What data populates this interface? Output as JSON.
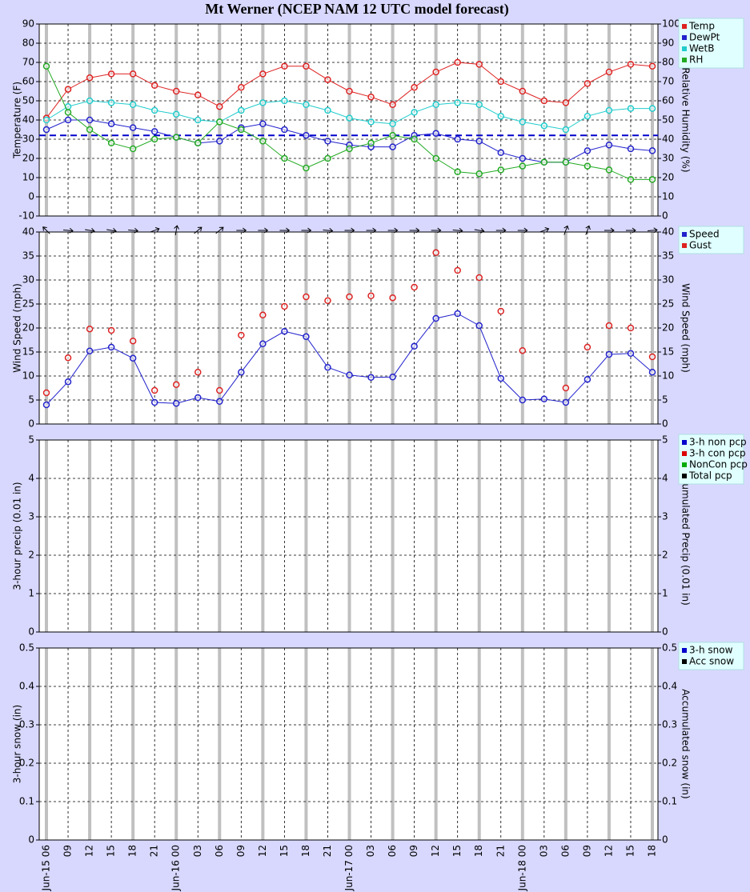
{
  "title": "Mt Werner (NCEP NAM 12 UTC model forecast)",
  "chart_data": [
    {
      "type": "line",
      "ylabel": "Temperature (F)",
      "y2label": "Relative Humidity (%)",
      "ylim": [
        -10,
        90
      ],
      "yticks": [
        -10,
        0,
        10,
        20,
        30,
        40,
        50,
        60,
        70,
        80,
        90
      ],
      "y2lim": [
        0,
        100
      ],
      "y2ticks": [
        0,
        10,
        20,
        30,
        40,
        50,
        60,
        70,
        80,
        90,
        100
      ],
      "grid": true,
      "reference_line": {
        "value": 32,
        "color": "#0000cc"
      },
      "series": [
        {
          "name": "Temp",
          "color": "#dd2222",
          "values": [
            41,
            56,
            62,
            64,
            64,
            58,
            55,
            53,
            47,
            57,
            64,
            68,
            68,
            61,
            55,
            52,
            48,
            57,
            65,
            70,
            69,
            60,
            55,
            50,
            49,
            59,
            65,
            69,
            68
          ]
        },
        {
          "name": "DewPt",
          "color": "#2222cc",
          "values": [
            35,
            40,
            40,
            38,
            36,
            34,
            31,
            28,
            29,
            36,
            38,
            35,
            32,
            29,
            27,
            26,
            26,
            32,
            33,
            30,
            29,
            23,
            20,
            18,
            18,
            24,
            27,
            25,
            24
          ]
        },
        {
          "name": "WetB",
          "color": "#22cccc",
          "values": [
            40,
            47,
            50,
            49,
            48,
            45,
            43,
            40,
            39,
            45,
            49,
            50,
            48,
            45,
            41,
            39,
            38,
            44,
            48,
            49,
            48,
            42,
            39,
            37,
            35,
            42,
            45,
            46,
            46
          ]
        },
        {
          "name": "RH",
          "color": "#22aa22",
          "axis": "y2",
          "values": [
            78,
            54,
            45,
            38,
            35,
            40,
            41,
            38,
            49,
            45,
            39,
            30,
            25,
            30,
            35,
            38,
            42,
            40,
            30,
            23,
            22,
            24,
            26,
            28,
            28,
            26,
            24,
            19,
            19
          ]
        }
      ]
    },
    {
      "type": "line",
      "ylabel": "Wind Speed (mph)",
      "y2label": "Wind Speed (mph)",
      "ylim": [
        0,
        40
      ],
      "yticks": [
        0,
        5,
        10,
        15,
        20,
        25,
        30,
        35,
        40
      ],
      "y2lim": [
        0,
        40
      ],
      "y2ticks": [
        0,
        5,
        10,
        15,
        20,
        25,
        30,
        35,
        40
      ],
      "grid": true,
      "direction": [
        315,
        95,
        100,
        100,
        95,
        70,
        10,
        50,
        50,
        90,
        90,
        90,
        90,
        95,
        90,
        90,
        90,
        90,
        90,
        95,
        100,
        90,
        90,
        70,
        20,
        20,
        90,
        90,
        85
      ],
      "series": [
        {
          "name": "Speed",
          "color": "#2222cc",
          "style": "line",
          "values": [
            4,
            8.8,
            15.2,
            16,
            13.7,
            4.5,
            4.3,
            5.5,
            4.7,
            10.8,
            16.7,
            19.3,
            18.2,
            11.8,
            10.2,
            9.7,
            9.8,
            16.2,
            22,
            23,
            20.5,
            9.5,
            5,
            5.2,
            4.5,
            9.3,
            14.5,
            14.7,
            10.8
          ]
        },
        {
          "name": "Gust",
          "color": "#dd2222",
          "style": "markers",
          "values": [
            6.5,
            13.8,
            19.8,
            19.5,
            17.3,
            7,
            8.2,
            10.8,
            7,
            18.5,
            22.7,
            24.5,
            26.5,
            25.7,
            26.5,
            26.7,
            26.3,
            28.5,
            35.7,
            32,
            30.5,
            23.5,
            15.3,
            null,
            7.5,
            16,
            20.5,
            20,
            14
          ]
        }
      ]
    },
    {
      "type": "bar",
      "ylabel": "3-hour precip (0.01 in)",
      "y2label": "Accumulated Precip (0.01 in)",
      "ylim": [
        0,
        5
      ],
      "yticks": [
        0,
        1,
        2,
        3,
        4,
        5
      ],
      "y2lim": [
        0,
        5
      ],
      "y2ticks": [
        0,
        1,
        2,
        3,
        4,
        5
      ],
      "grid": true,
      "series": [
        {
          "name": "3-h non pcp",
          "color": "#0000cc",
          "values": [
            0,
            0,
            0,
            0,
            0,
            0,
            0,
            0,
            0,
            0,
            0,
            0,
            0,
            0,
            0,
            0,
            0,
            0,
            0,
            0,
            0,
            0,
            0,
            0,
            0,
            0,
            0,
            0,
            0
          ]
        },
        {
          "name": "3-h con pcp",
          "color": "#dd0000",
          "values": [
            0,
            0,
            0,
            0,
            0,
            0,
            0,
            0,
            0,
            0,
            0,
            0,
            0,
            0,
            0,
            0,
            0,
            0,
            0,
            0,
            0,
            0,
            0,
            0,
            0,
            0,
            0,
            0,
            0
          ]
        },
        {
          "name": "NonCon pcp",
          "color": "#00aa00",
          "values": [
            0,
            0,
            0,
            0,
            0,
            0,
            0,
            0,
            0,
            0,
            0,
            0,
            0,
            0,
            0,
            0,
            0,
            0,
            0,
            0,
            0,
            0,
            0,
            0,
            0,
            0,
            0,
            0,
            0
          ]
        },
        {
          "name": "Total pcp",
          "color": "#000000",
          "axis": "y2",
          "values": [
            0,
            0,
            0,
            0,
            0,
            0,
            0,
            0,
            0,
            0,
            0,
            0,
            0,
            0,
            0,
            0,
            0,
            0,
            0,
            0,
            0,
            0,
            0,
            0,
            0,
            0,
            0,
            0,
            0
          ]
        }
      ]
    },
    {
      "type": "bar",
      "ylabel": "3-hour snow (in)",
      "y2label": "Accumulated snow (in)",
      "ylim": [
        0,
        0.5
      ],
      "yticks": [
        0,
        0.1,
        0.2,
        0.3,
        0.4,
        0.5
      ],
      "y2lim": [
        0,
        0.5
      ],
      "y2ticks": [
        0,
        0.1,
        0.2,
        0.3,
        0.4,
        0.5
      ],
      "grid": true,
      "categories": [
        "Jun-15 06",
        "09",
        "12",
        "15",
        "18",
        "21",
        "Jun-16 00",
        "03",
        "06",
        "09",
        "12",
        "15",
        "18",
        "21",
        "Jun-17 00",
        "03",
        "06",
        "09",
        "12",
        "15",
        "18",
        "21",
        "Jun-18 00",
        "03",
        "06",
        "09",
        "12",
        "15",
        "18"
      ],
      "series": [
        {
          "name": "3-h snow",
          "color": "#0000cc",
          "values": [
            0,
            0,
            0,
            0,
            0,
            0,
            0,
            0,
            0,
            0,
            0,
            0,
            0,
            0,
            0,
            0,
            0,
            0,
            0,
            0,
            0,
            0,
            0,
            0,
            0,
            0,
            0,
            0,
            0
          ]
        },
        {
          "name": "Acc snow",
          "color": "#000000",
          "axis": "y2",
          "values": [
            0,
            0,
            0,
            0,
            0,
            0,
            0,
            0,
            0,
            0,
            0,
            0,
            0,
            0,
            0,
            0,
            0,
            0,
            0,
            0,
            0,
            0,
            0,
            0,
            0,
            0,
            0,
            0,
            0
          ]
        }
      ]
    }
  ]
}
